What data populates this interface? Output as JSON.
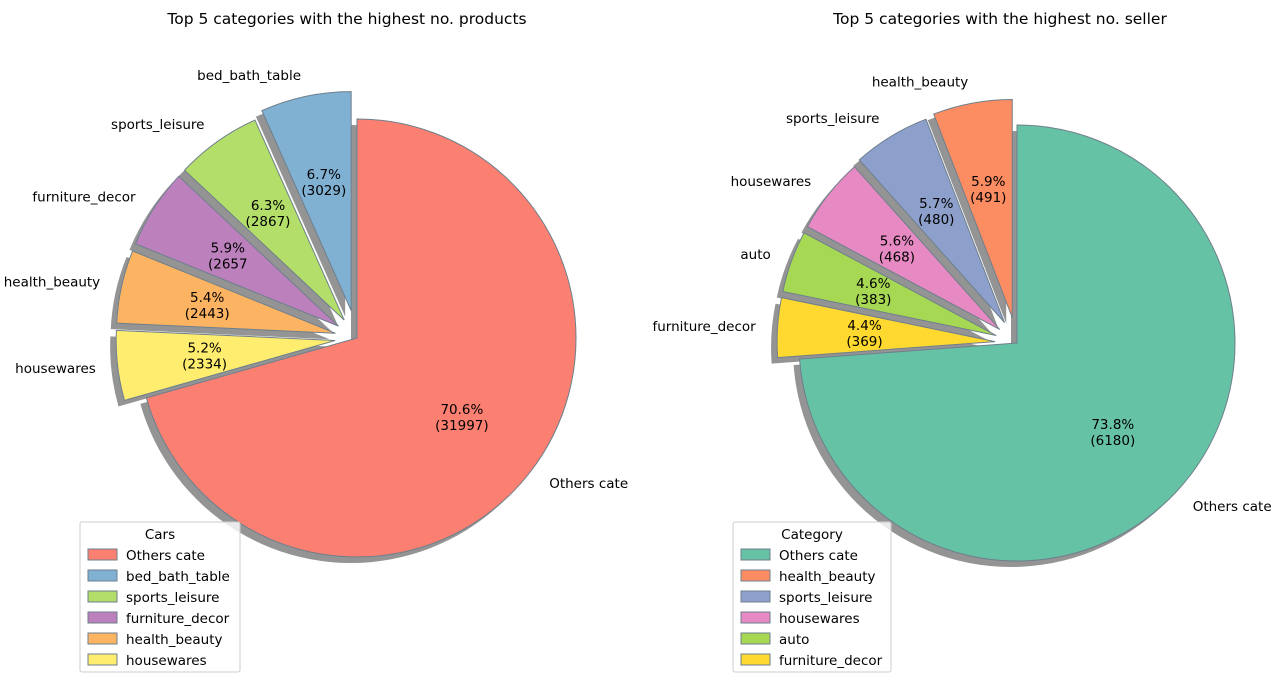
{
  "chart_data": [
    {
      "type": "pie",
      "title": "Top  5 categories with the highest no. products",
      "legend_title": "Cars",
      "legend_position": "lower-left",
      "categories": [
        "Others cate",
        "bed_bath_table",
        "sports_leisure",
        "furniture_decor",
        "health_beauty",
        "housewares"
      ],
      "values": [
        31997,
        3029,
        2867,
        2657,
        2443,
        2334
      ],
      "percent_labels": [
        "70.6%",
        "6.7%",
        "6.3%",
        "5.9%",
        "5.4%",
        "5.2%"
      ],
      "count_labels": [
        "(31997)",
        "(3029)",
        "(2867)",
        "(2657",
        "(2443)",
        "(2334)"
      ],
      "colors": [
        "#fb8072",
        "#80b1d3",
        "#b3de69",
        "#bc80bd",
        "#fdb462",
        "#ffed6f"
      ],
      "shadow": true,
      "exploded": true
    },
    {
      "type": "pie",
      "title": "Top  5 categories with the highest no. seller",
      "legend_title": "Category",
      "legend_position": "lower-left",
      "categories": [
        "Others cate",
        "health_beauty",
        "sports_leisure",
        "housewares",
        "auto",
        "furniture_decor"
      ],
      "values": [
        6180,
        491,
        480,
        468,
        383,
        369
      ],
      "percent_labels": [
        "73.8%",
        "5.9%",
        "5.7%",
        "5.6%",
        "4.6%",
        "4.4%"
      ],
      "count_labels": [
        "(6180)",
        "(491)",
        "(480)",
        "(468)",
        "(383)",
        "(369)"
      ],
      "colors": [
        "#66c2a5",
        "#fc8d62",
        "#8da0cb",
        "#e78ac3",
        "#a6d854",
        "#ffd92f"
      ],
      "shadow": true,
      "exploded": true
    }
  ]
}
